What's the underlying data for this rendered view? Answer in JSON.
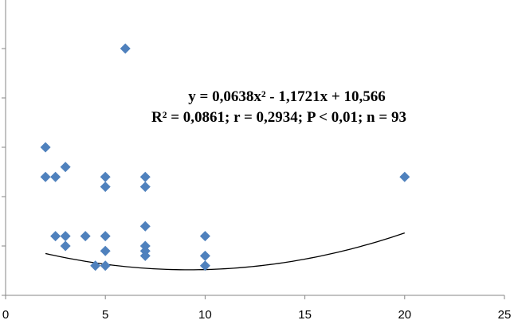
{
  "chart_data": {
    "type": "scatter",
    "title": "",
    "xlabel": "",
    "ylabel": "",
    "xlim": [
      0,
      25
    ],
    "ylim": [
      0,
      60
    ],
    "x_ticks": [
      0,
      5,
      10,
      15,
      20,
      25
    ],
    "x_tick_labels": [
      "0",
      "5",
      "10",
      "15",
      "20",
      "25"
    ],
    "y_ticks": [
      0,
      10,
      20,
      30,
      40,
      50,
      60
    ],
    "y_tick_labels_visible": false,
    "grid": false,
    "legend": "none",
    "marker": "diamond",
    "series": [
      {
        "color": "#4f81bd",
        "points": [
          [
            2,
            30
          ],
          [
            2,
            24
          ],
          [
            2.5,
            24
          ],
          [
            3,
            26
          ],
          [
            2.5,
            12
          ],
          [
            3,
            12
          ],
          [
            3,
            10
          ],
          [
            4,
            12
          ],
          [
            4.5,
            6
          ],
          [
            5,
            6
          ],
          [
            5,
            9
          ],
          [
            5,
            12
          ],
          [
            5,
            22
          ],
          [
            5,
            24
          ],
          [
            6,
            50
          ],
          [
            7,
            24
          ],
          [
            7,
            22
          ],
          [
            7,
            14
          ],
          [
            7,
            10
          ],
          [
            7,
            9
          ],
          [
            7,
            8
          ],
          [
            10,
            12
          ],
          [
            10,
            8
          ],
          [
            10,
            6
          ],
          [
            20,
            24
          ]
        ]
      }
    ],
    "trendline": {
      "type": "polynomial",
      "coefficients": [
        0.0638,
        -1.1721,
        10.566
      ],
      "x_range": [
        2,
        20
      ],
      "color": "#000000"
    },
    "annotations": [
      "y = 0,0638x² - 1,1721x + 10,566",
      "R² = 0,0861; r = 0,2934; P < 0,01; n = 93"
    ]
  }
}
